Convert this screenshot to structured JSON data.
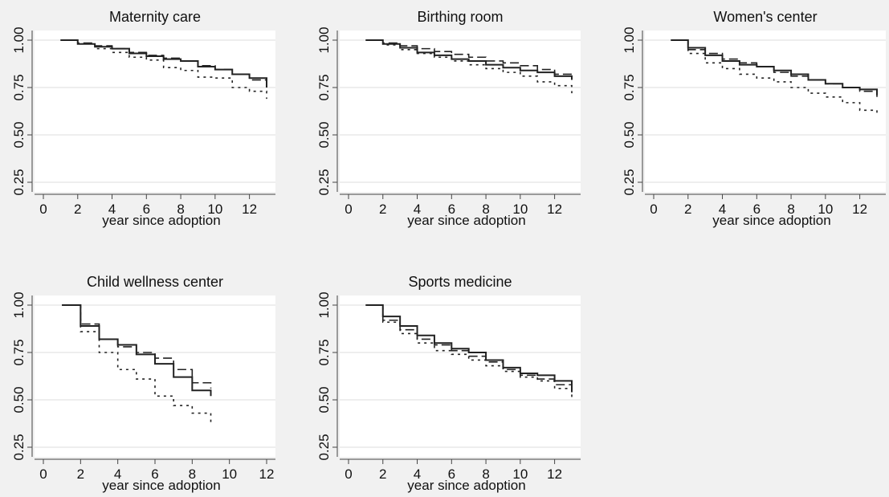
{
  "figure": {
    "background": "#f1f1f1",
    "plot_background": "#ffffff",
    "grid_color": "#e8e8e8",
    "axis_color": "#444444",
    "line_color": "#222222"
  },
  "chart_data": [
    {
      "type": "line",
      "title": "Maternity care",
      "xlabel": "year since adoption",
      "ylabel": "",
      "xlim": [
        0,
        13
      ],
      "ylim": [
        0.25,
        1.0
      ],
      "xticks": [
        0,
        2,
        4,
        6,
        8,
        10,
        12
      ],
      "xtick_labels": [
        "0",
        "2",
        "4",
        "6",
        "8",
        "10",
        "12"
      ],
      "yticks": [
        0.25,
        0.5,
        0.75,
        1.0
      ],
      "ytick_labels": [
        "0.25",
        "0.50",
        "0.75",
        "1.00"
      ],
      "grid": true,
      "step": true,
      "series": [
        {
          "style": "solid",
          "x": [
            1,
            2,
            3,
            4,
            5,
            6,
            7,
            8,
            9,
            10,
            11,
            12,
            13
          ],
          "y": [
            1.0,
            0.98,
            0.965,
            0.955,
            0.93,
            0.915,
            0.9,
            0.89,
            0.86,
            0.845,
            0.82,
            0.8,
            0.75
          ]
        },
        {
          "style": "dashed",
          "x": [
            1,
            2,
            3,
            4,
            5,
            6,
            7,
            8,
            9,
            10,
            11,
            12,
            13
          ],
          "y": [
            1.0,
            0.985,
            0.97,
            0.955,
            0.935,
            0.92,
            0.905,
            0.89,
            0.865,
            0.845,
            0.82,
            0.79,
            0.76
          ]
        },
        {
          "style": "dotted",
          "x": [
            1,
            2,
            3,
            4,
            5,
            6,
            7,
            8,
            9,
            10,
            11,
            12,
            13
          ],
          "y": [
            1.0,
            0.98,
            0.955,
            0.935,
            0.91,
            0.895,
            0.855,
            0.84,
            0.805,
            0.8,
            0.75,
            0.73,
            0.69
          ]
        }
      ]
    },
    {
      "type": "line",
      "title": "Birthing room",
      "xlabel": "year since adoption",
      "ylabel": "",
      "xlim": [
        0,
        13
      ],
      "ylim": [
        0.25,
        1.0
      ],
      "xticks": [
        0,
        2,
        4,
        6,
        8,
        10,
        12
      ],
      "xtick_labels": [
        "0",
        "2",
        "4",
        "6",
        "8",
        "10",
        "12"
      ],
      "yticks": [
        0.25,
        0.5,
        0.75,
        1.0
      ],
      "ytick_labels": [
        "0.25",
        "0.50",
        "0.75",
        "1.00"
      ],
      "grid": true,
      "step": true,
      "series": [
        {
          "style": "solid",
          "x": [
            1,
            2,
            3,
            4,
            5,
            6,
            7,
            8,
            9,
            10,
            11,
            12,
            13
          ],
          "y": [
            1.0,
            0.98,
            0.96,
            0.935,
            0.92,
            0.9,
            0.89,
            0.87,
            0.855,
            0.84,
            0.83,
            0.81,
            0.79
          ]
        },
        {
          "style": "dashed",
          "x": [
            1,
            2,
            3,
            4,
            5,
            6,
            7,
            8,
            9,
            10,
            11,
            12,
            13
          ],
          "y": [
            1.0,
            0.985,
            0.97,
            0.955,
            0.94,
            0.925,
            0.91,
            0.89,
            0.88,
            0.865,
            0.845,
            0.82,
            0.8
          ]
        },
        {
          "style": "dotted",
          "x": [
            1,
            2,
            3,
            4,
            5,
            6,
            7,
            8,
            9,
            10,
            11,
            12,
            13
          ],
          "y": [
            1.0,
            0.975,
            0.95,
            0.93,
            0.91,
            0.89,
            0.87,
            0.85,
            0.83,
            0.81,
            0.78,
            0.76,
            0.72
          ]
        }
      ]
    },
    {
      "type": "line",
      "title": "Women's center",
      "xlabel": "year since adoption",
      "ylabel": "",
      "xlim": [
        0,
        13
      ],
      "ylim": [
        0.25,
        1.0
      ],
      "xticks": [
        0,
        2,
        4,
        6,
        8,
        10,
        12
      ],
      "xtick_labels": [
        "0",
        "2",
        "4",
        "6",
        "8",
        "10",
        "12"
      ],
      "yticks": [
        0.25,
        0.5,
        0.75,
        1.0
      ],
      "ytick_labels": [
        "0.25",
        "0.50",
        "0.75",
        "1.00"
      ],
      "grid": true,
      "step": true,
      "series": [
        {
          "style": "solid",
          "x": [
            1,
            2,
            3,
            4,
            5,
            6,
            7,
            8,
            9,
            10,
            11,
            12,
            13
          ],
          "y": [
            1.0,
            0.96,
            0.92,
            0.89,
            0.87,
            0.86,
            0.84,
            0.82,
            0.79,
            0.77,
            0.75,
            0.74,
            0.71
          ]
        },
        {
          "style": "dashed",
          "x": [
            1,
            2,
            3,
            4,
            5,
            6,
            7,
            8,
            9,
            10,
            11,
            12,
            13
          ],
          "y": [
            1.0,
            0.95,
            0.93,
            0.9,
            0.88,
            0.86,
            0.83,
            0.81,
            0.79,
            0.77,
            0.75,
            0.73,
            0.7
          ]
        },
        {
          "style": "dotted",
          "x": [
            1,
            2,
            3,
            4,
            5,
            6,
            7,
            8,
            9,
            10,
            11,
            12,
            13
          ],
          "y": [
            1.0,
            0.93,
            0.88,
            0.85,
            0.82,
            0.8,
            0.78,
            0.75,
            0.72,
            0.7,
            0.67,
            0.63,
            0.6
          ]
        }
      ]
    },
    {
      "type": "line",
      "title": "Child wellness center",
      "xlabel": "year since adoption",
      "ylabel": "",
      "xlim": [
        0,
        12
      ],
      "ylim": [
        0.25,
        1.0
      ],
      "xticks": [
        0,
        2,
        4,
        6,
        8,
        10,
        12
      ],
      "xtick_labels": [
        "0",
        "2",
        "4",
        "6",
        "8",
        "10",
        "12"
      ],
      "yticks": [
        0.25,
        0.5,
        0.75,
        1.0
      ],
      "ytick_labels": [
        "0.25",
        "0.50",
        "0.75",
        "1.00"
      ],
      "grid": true,
      "step": true,
      "series": [
        {
          "style": "solid",
          "x": [
            1,
            2,
            3,
            4,
            5,
            6,
            7,
            8,
            9
          ],
          "y": [
            1.0,
            0.89,
            0.82,
            0.79,
            0.74,
            0.69,
            0.62,
            0.55,
            0.52
          ]
        },
        {
          "style": "dashed",
          "x": [
            1,
            2,
            3,
            4,
            5,
            6,
            7,
            8,
            9
          ],
          "y": [
            1.0,
            0.9,
            0.82,
            0.78,
            0.75,
            0.72,
            0.66,
            0.59,
            0.56
          ]
        },
        {
          "style": "dotted",
          "x": [
            1,
            2,
            3,
            4,
            5,
            6,
            7,
            8,
            9
          ],
          "y": [
            1.0,
            0.86,
            0.75,
            0.66,
            0.61,
            0.52,
            0.47,
            0.43,
            0.37
          ]
        }
      ]
    },
    {
      "type": "line",
      "title": "Sports medicine",
      "xlabel": "year since adoption",
      "ylabel": "",
      "xlim": [
        0,
        13
      ],
      "ylim": [
        0.25,
        1.0
      ],
      "xticks": [
        0,
        2,
        4,
        6,
        8,
        10,
        12
      ],
      "xtick_labels": [
        "0",
        "2",
        "4",
        "6",
        "8",
        "10",
        "12"
      ],
      "yticks": [
        0.25,
        0.5,
        0.75,
        1.0
      ],
      "ytick_labels": [
        "0.25",
        "0.50",
        "0.75",
        "1.00"
      ],
      "grid": true,
      "step": true,
      "series": [
        {
          "style": "solid",
          "x": [
            1,
            2,
            3,
            4,
            5,
            6,
            7,
            8,
            9,
            10,
            11,
            12,
            13
          ],
          "y": [
            1.0,
            0.94,
            0.89,
            0.84,
            0.8,
            0.77,
            0.75,
            0.71,
            0.67,
            0.64,
            0.63,
            0.6,
            0.54
          ]
        },
        {
          "style": "dashed",
          "x": [
            1,
            2,
            3,
            4,
            5,
            6,
            7,
            8,
            9,
            10,
            11,
            12,
            13
          ],
          "y": [
            1.0,
            0.92,
            0.87,
            0.82,
            0.79,
            0.76,
            0.73,
            0.7,
            0.66,
            0.63,
            0.61,
            0.58,
            0.55
          ]
        },
        {
          "style": "dotted",
          "x": [
            1,
            2,
            3,
            4,
            5,
            6,
            7,
            8,
            9,
            10,
            11,
            12,
            13
          ],
          "y": [
            1.0,
            0.91,
            0.85,
            0.8,
            0.76,
            0.74,
            0.71,
            0.68,
            0.65,
            0.62,
            0.6,
            0.56,
            0.5
          ]
        }
      ]
    }
  ]
}
